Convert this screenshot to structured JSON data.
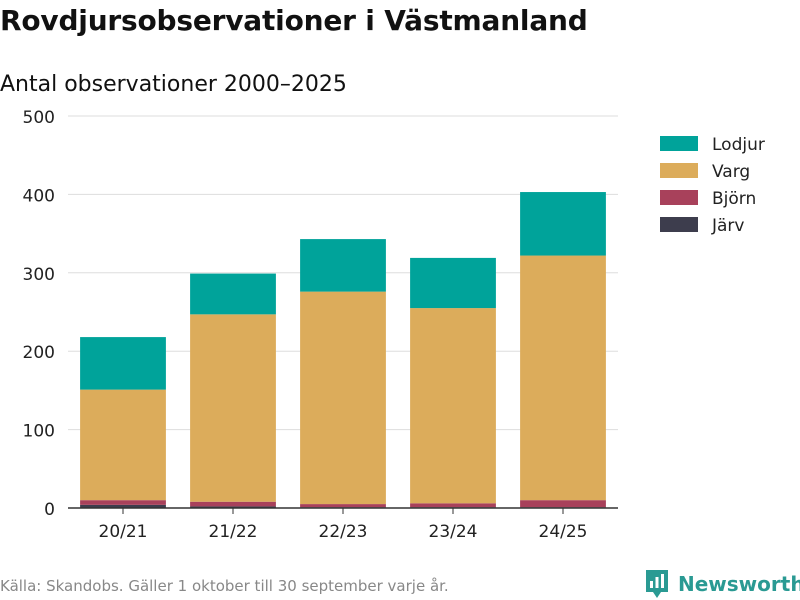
{
  "header": {
    "title": "Rovdjursobservationer i Västmanland",
    "subtitle": "Antal observationer 2000–2025"
  },
  "footer": {
    "source": "Källa: Skandobs. Gäller 1 oktober till 30 september varje år.",
    "brand": "Newsworthy"
  },
  "chart_data": {
    "type": "bar",
    "stacked": true,
    "title": "Rovdjursobservationer i Västmanland",
    "subtitle": "Antal observationer 2000–2025",
    "xlabel": "",
    "ylabel": "",
    "ylim": [
      0,
      500
    ],
    "yticks": [
      0,
      100,
      200,
      300,
      400,
      500
    ],
    "grid": true,
    "legend_position": "top-right",
    "categories": [
      "20/21",
      "21/22",
      "22/23",
      "23/24",
      "24/25"
    ],
    "series": [
      {
        "name": "Järv",
        "color": "#3d3d4d",
        "values": [
          4,
          2,
          1,
          1,
          1
        ]
      },
      {
        "name": "Björn",
        "color": "#a8415b",
        "values": [
          6,
          6,
          4,
          5,
          9
        ]
      },
      {
        "name": "Varg",
        "color": "#dcac5b",
        "values": [
          141,
          239,
          271,
          249,
          312
        ]
      },
      {
        "name": "Lodjur",
        "color": "#00a39a",
        "values": [
          67,
          52,
          67,
          64,
          81
        ]
      }
    ]
  }
}
